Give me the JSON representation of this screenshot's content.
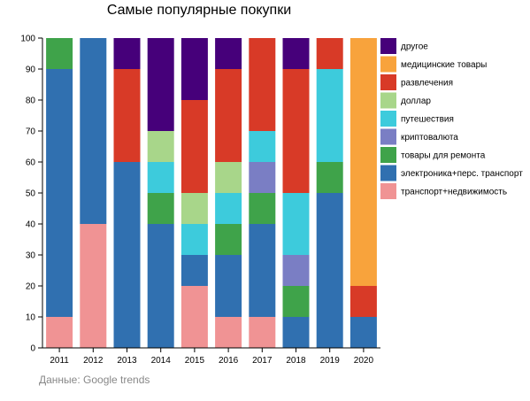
{
  "chart_data": {
    "type": "bar",
    "stacked": true,
    "title": "Самые популярные покупки",
    "xlabel": "",
    "ylabel": "",
    "ylim": [
      0,
      100
    ],
    "yticks": [
      0,
      10,
      20,
      30,
      40,
      50,
      60,
      70,
      80,
      90,
      100
    ],
    "grid": false,
    "legend_position": "right",
    "categories": [
      "2011",
      "2012",
      "2013",
      "2014",
      "2015",
      "2016",
      "2017",
      "2018",
      "2019",
      "2020"
    ],
    "series": [
      {
        "name": "транспорт+недвижимость",
        "color": "#f09394",
        "values": [
          10,
          40,
          0,
          0,
          20,
          10,
          10,
          0,
          0,
          0
        ]
      },
      {
        "name": "электроника+перс. транспорт",
        "color": "#3070b0",
        "values": [
          80,
          60,
          60,
          40,
          10,
          20,
          30,
          10,
          50,
          10
        ]
      },
      {
        "name": "товары для ремонта",
        "color": "#3fa34a",
        "values": [
          10,
          0,
          0,
          10,
          0,
          10,
          10,
          10,
          10,
          0
        ]
      },
      {
        "name": "криптовалюта",
        "color": "#7a7ec4",
        "values": [
          0,
          0,
          0,
          0,
          0,
          0,
          10,
          10,
          0,
          0
        ]
      },
      {
        "name": "путешествия",
        "color": "#3dcbdc",
        "values": [
          0,
          0,
          0,
          10,
          10,
          10,
          10,
          20,
          30,
          0
        ]
      },
      {
        "name": "доллар",
        "color": "#a8d68a",
        "values": [
          0,
          0,
          0,
          10,
          10,
          10,
          0,
          0,
          0,
          0
        ]
      },
      {
        "name": "развлечения",
        "color": "#d83a27",
        "values": [
          0,
          0,
          30,
          0,
          30,
          30,
          30,
          40,
          10,
          10
        ]
      },
      {
        "name": "медицинские товары",
        "color": "#f8a33c",
        "values": [
          0,
          0,
          0,
          0,
          0,
          0,
          0,
          0,
          0,
          80
        ]
      },
      {
        "name": "другое",
        "color": "#46007a",
        "values": [
          0,
          0,
          10,
          30,
          20,
          10,
          0,
          10,
          0,
          0
        ]
      }
    ],
    "legend_order": [
      "другое",
      "медицинские товары",
      "развлечения",
      "доллар",
      "путешествия",
      "криптовалюта",
      "товары для ремонта",
      "электроника+перс. транспорт",
      "транспорт+недвижимость"
    ],
    "source": "Данные: Google trends"
  }
}
